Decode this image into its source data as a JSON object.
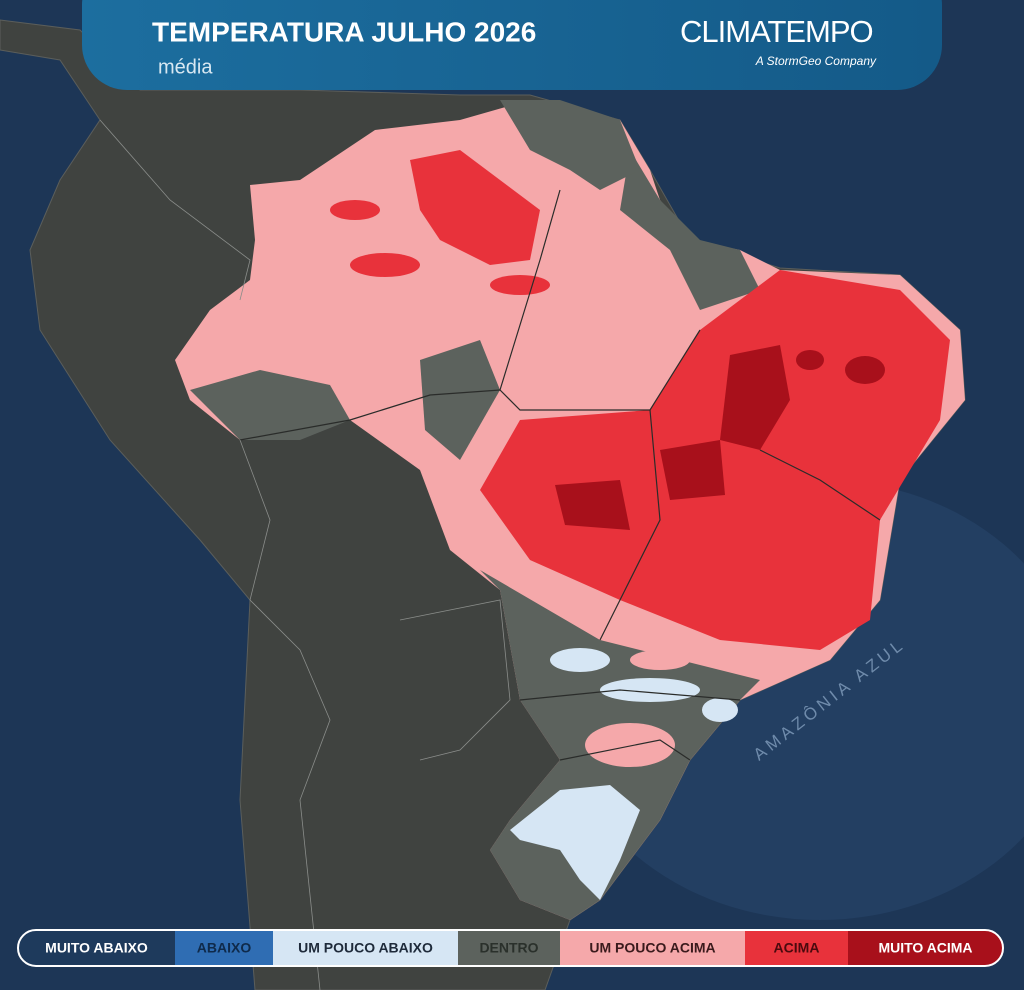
{
  "header": {
    "title": "TEMPERATURA JULHO 2026",
    "subtitle": "média"
  },
  "brand": {
    "name": "CLIMATEMPO",
    "tagline": "A StormGeo Company"
  },
  "map": {
    "ocean_label": "AMAZÔNIA AZUL"
  },
  "legend": {
    "items": [
      {
        "label": "MUITO ABAIXO",
        "color": "#1e3a5c",
        "text_color": "#ffffff"
      },
      {
        "label": "ABAIXO",
        "color": "#2f6db3",
        "text_color": "#0f2a4a"
      },
      {
        "label": "UM POUCO ABAIXO",
        "color": "#d6e6f4",
        "text_color": "#1e2a3a"
      },
      {
        "label": "DENTRO",
        "color": "#5c625d",
        "text_color": "#2a302b"
      },
      {
        "label": "UM POUCO ACIMA",
        "color": "#f5a8aa",
        "text_color": "#3a1a1c"
      },
      {
        "label": "ACIMA",
        "color": "#e8323b",
        "text_color": "#4a0a0e"
      },
      {
        "label": "MUITO ACIMA",
        "color": "#a8101b",
        "text_color": "#ffffff"
      }
    ]
  }
}
